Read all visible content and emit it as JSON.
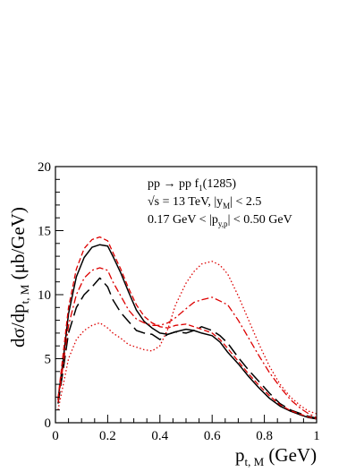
{
  "chart_data": {
    "type": "line",
    "xlabel": "p",
    "xlabel_sub": "t, M",
    "xlabel_unit": " (GeV)",
    "ylabel": "dσ/dp",
    "ylabel_sub": "t, M",
    "ylabel_unit": " (μb/GeV)",
    "xlim": [
      0,
      1
    ],
    "ylim": [
      0,
      20
    ],
    "xticks": [
      "0",
      "0.2",
      "0.4",
      "0.6",
      "0.8",
      "1"
    ],
    "yticks": [
      "0",
      "5",
      "10",
      "15",
      "20"
    ],
    "grid": false,
    "legend": "none",
    "annotations": {
      "line1": {
        "a": "pp → pp f",
        "sub": "1",
        "b": "(1285)"
      },
      "line2": {
        "a": "√s = 13 TeV,  |y",
        "sub": "M",
        "b": "| < 2.5"
      },
      "line3": {
        "a": "0.17 GeV < |p",
        "sub": "y,p",
        "b": "| < 0.50 GeV"
      }
    },
    "series": [
      {
        "style": "solid",
        "color": "#000000",
        "x": [
          0.01,
          0.03,
          0.05,
          0.08,
          0.11,
          0.14,
          0.17,
          0.2,
          0.22,
          0.25,
          0.28,
          0.31,
          0.34,
          0.37,
          0.4,
          0.43,
          0.46,
          0.5,
          0.53,
          0.56,
          0.6,
          0.63,
          0.66,
          0.7,
          0.74,
          0.78,
          0.82,
          0.86,
          0.9,
          0.94,
          0.97,
          1.0
        ],
        "y": [
          1.8,
          5.0,
          8.5,
          11.4,
          12.9,
          13.7,
          13.9,
          13.8,
          13.0,
          11.7,
          10.2,
          8.8,
          7.9,
          7.4,
          7.0,
          6.9,
          7.1,
          7.3,
          7.2,
          7.0,
          6.8,
          6.3,
          5.5,
          4.6,
          3.6,
          2.7,
          1.9,
          1.3,
          0.9,
          0.6,
          0.4,
          0.3
        ]
      },
      {
        "style": "long-dash",
        "color": "#000000",
        "x": [
          0.01,
          0.03,
          0.05,
          0.08,
          0.11,
          0.14,
          0.17,
          0.2,
          0.22,
          0.25,
          0.28,
          0.31,
          0.34,
          0.37,
          0.4,
          0.43,
          0.46,
          0.5,
          0.53,
          0.56,
          0.6,
          0.63,
          0.66,
          0.7,
          0.74,
          0.78,
          0.82,
          0.86,
          0.9,
          0.94,
          0.97,
          1.0
        ],
        "y": [
          1.5,
          4.2,
          7.0,
          9.0,
          10.0,
          10.6,
          11.3,
          10.6,
          9.6,
          8.6,
          7.9,
          7.2,
          7.0,
          6.9,
          6.5,
          6.9,
          7.1,
          7.0,
          7.2,
          7.5,
          7.2,
          6.8,
          6.2,
          5.1,
          4.1,
          3.2,
          2.3,
          1.5,
          1.0,
          0.7,
          0.5,
          0.35
        ]
      },
      {
        "style": "dashed",
        "color": "#dd0000",
        "x": [
          0.01,
          0.03,
          0.05,
          0.08,
          0.11,
          0.14,
          0.17,
          0.2,
          0.22,
          0.25,
          0.28,
          0.31,
          0.34,
          0.37,
          0.4,
          0.43,
          0.46,
          0.5,
          0.53,
          0.56,
          0.6,
          0.63,
          0.66,
          0.7,
          0.74,
          0.78,
          0.82,
          0.86,
          0.9,
          0.94,
          0.97,
          1.0
        ],
        "y": [
          1.9,
          5.5,
          9.0,
          12.0,
          13.6,
          14.3,
          14.5,
          14.2,
          13.3,
          12.0,
          10.5,
          9.2,
          8.3,
          7.8,
          7.5,
          7.4,
          7.6,
          7.7,
          7.5,
          7.3,
          7.0,
          6.5,
          5.8,
          4.8,
          3.8,
          2.9,
          2.1,
          1.4,
          0.95,
          0.65,
          0.45,
          0.3
        ]
      },
      {
        "style": "dash-dot",
        "color": "#dd0000",
        "x": [
          0.01,
          0.03,
          0.05,
          0.08,
          0.11,
          0.14,
          0.17,
          0.2,
          0.22,
          0.25,
          0.28,
          0.31,
          0.34,
          0.37,
          0.4,
          0.43,
          0.46,
          0.5,
          0.53,
          0.56,
          0.6,
          0.63,
          0.66,
          0.7,
          0.74,
          0.78,
          0.82,
          0.86,
          0.9,
          0.94,
          0.97,
          1.0
        ],
        "y": [
          1.6,
          4.6,
          7.6,
          10.0,
          11.3,
          11.9,
          12.1,
          11.9,
          11.0,
          9.9,
          8.8,
          8.1,
          7.8,
          7.6,
          7.6,
          7.8,
          8.2,
          8.9,
          9.4,
          9.6,
          9.8,
          9.5,
          9.2,
          8.0,
          6.6,
          5.2,
          3.9,
          2.8,
          1.8,
          1.1,
          0.7,
          0.4
        ]
      },
      {
        "style": "dotted",
        "color": "#dd0000",
        "x": [
          0.01,
          0.03,
          0.05,
          0.08,
          0.11,
          0.14,
          0.17,
          0.2,
          0.22,
          0.25,
          0.28,
          0.31,
          0.34,
          0.37,
          0.4,
          0.43,
          0.46,
          0.5,
          0.53,
          0.56,
          0.6,
          0.63,
          0.66,
          0.7,
          0.74,
          0.78,
          0.82,
          0.86,
          0.9,
          0.94,
          0.97,
          1.0
        ],
        "y": [
          1.0,
          3.0,
          5.0,
          6.5,
          7.2,
          7.6,
          7.8,
          7.4,
          7.0,
          6.6,
          6.1,
          5.9,
          5.7,
          5.6,
          6.0,
          7.3,
          9.2,
          10.9,
          11.8,
          12.4,
          12.6,
          12.3,
          11.6,
          9.9,
          8.0,
          6.1,
          4.4,
          3.0,
          2.0,
          1.3,
          0.9,
          0.7
        ]
      }
    ]
  }
}
